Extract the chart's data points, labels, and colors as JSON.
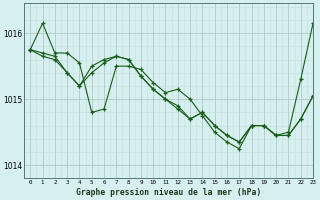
{
  "title": "Graphe pression niveau de la mer (hPa)",
  "background_color": "#d6f0f0",
  "grid_color_major": "#b0c8c8",
  "grid_color_minor": "#c8dede",
  "line_color": "#1a5c1a",
  "xlim": [
    -0.5,
    23
  ],
  "ylim": [
    1013.85,
    1016.45
  ],
  "yticks": [
    1014,
    1015,
    1016
  ],
  "xticks": [
    0,
    1,
    2,
    3,
    4,
    5,
    6,
    7,
    8,
    9,
    10,
    11,
    12,
    13,
    14,
    15,
    16,
    17,
    18,
    19,
    20,
    21,
    22,
    23
  ],
  "series": [
    [
      1015.75,
      1016.15,
      1015.7,
      1015.7,
      1015.55,
      1014.8,
      1014.85,
      1015.5,
      1015.5,
      1015.45,
      1015.25,
      1015.1,
      1015.15,
      1015.0,
      1014.75,
      1014.5,
      1014.35,
      1014.25,
      1014.6,
      1014.6,
      1014.45,
      1014.5,
      1015.3,
      1016.15
    ],
    [
      1015.75,
      1015.7,
      1015.65,
      1015.4,
      1015.2,
      1015.5,
      1015.6,
      1015.65,
      1015.6,
      1015.35,
      1015.15,
      1015.0,
      1014.9,
      1014.7,
      1014.8,
      1014.6,
      1014.45,
      1014.35,
      1014.6,
      1014.6,
      1014.45,
      1014.45,
      1014.7,
      1015.05
    ],
    [
      1015.75,
      1015.65,
      1015.6,
      1015.4,
      1015.2,
      1015.4,
      1015.55,
      1015.65,
      1015.6,
      1015.35,
      1015.15,
      1015.0,
      1014.85,
      1014.7,
      1014.8,
      1014.6,
      1014.45,
      1014.35,
      1014.6,
      1014.6,
      1014.45,
      1014.45,
      1014.7,
      1015.05
    ]
  ]
}
